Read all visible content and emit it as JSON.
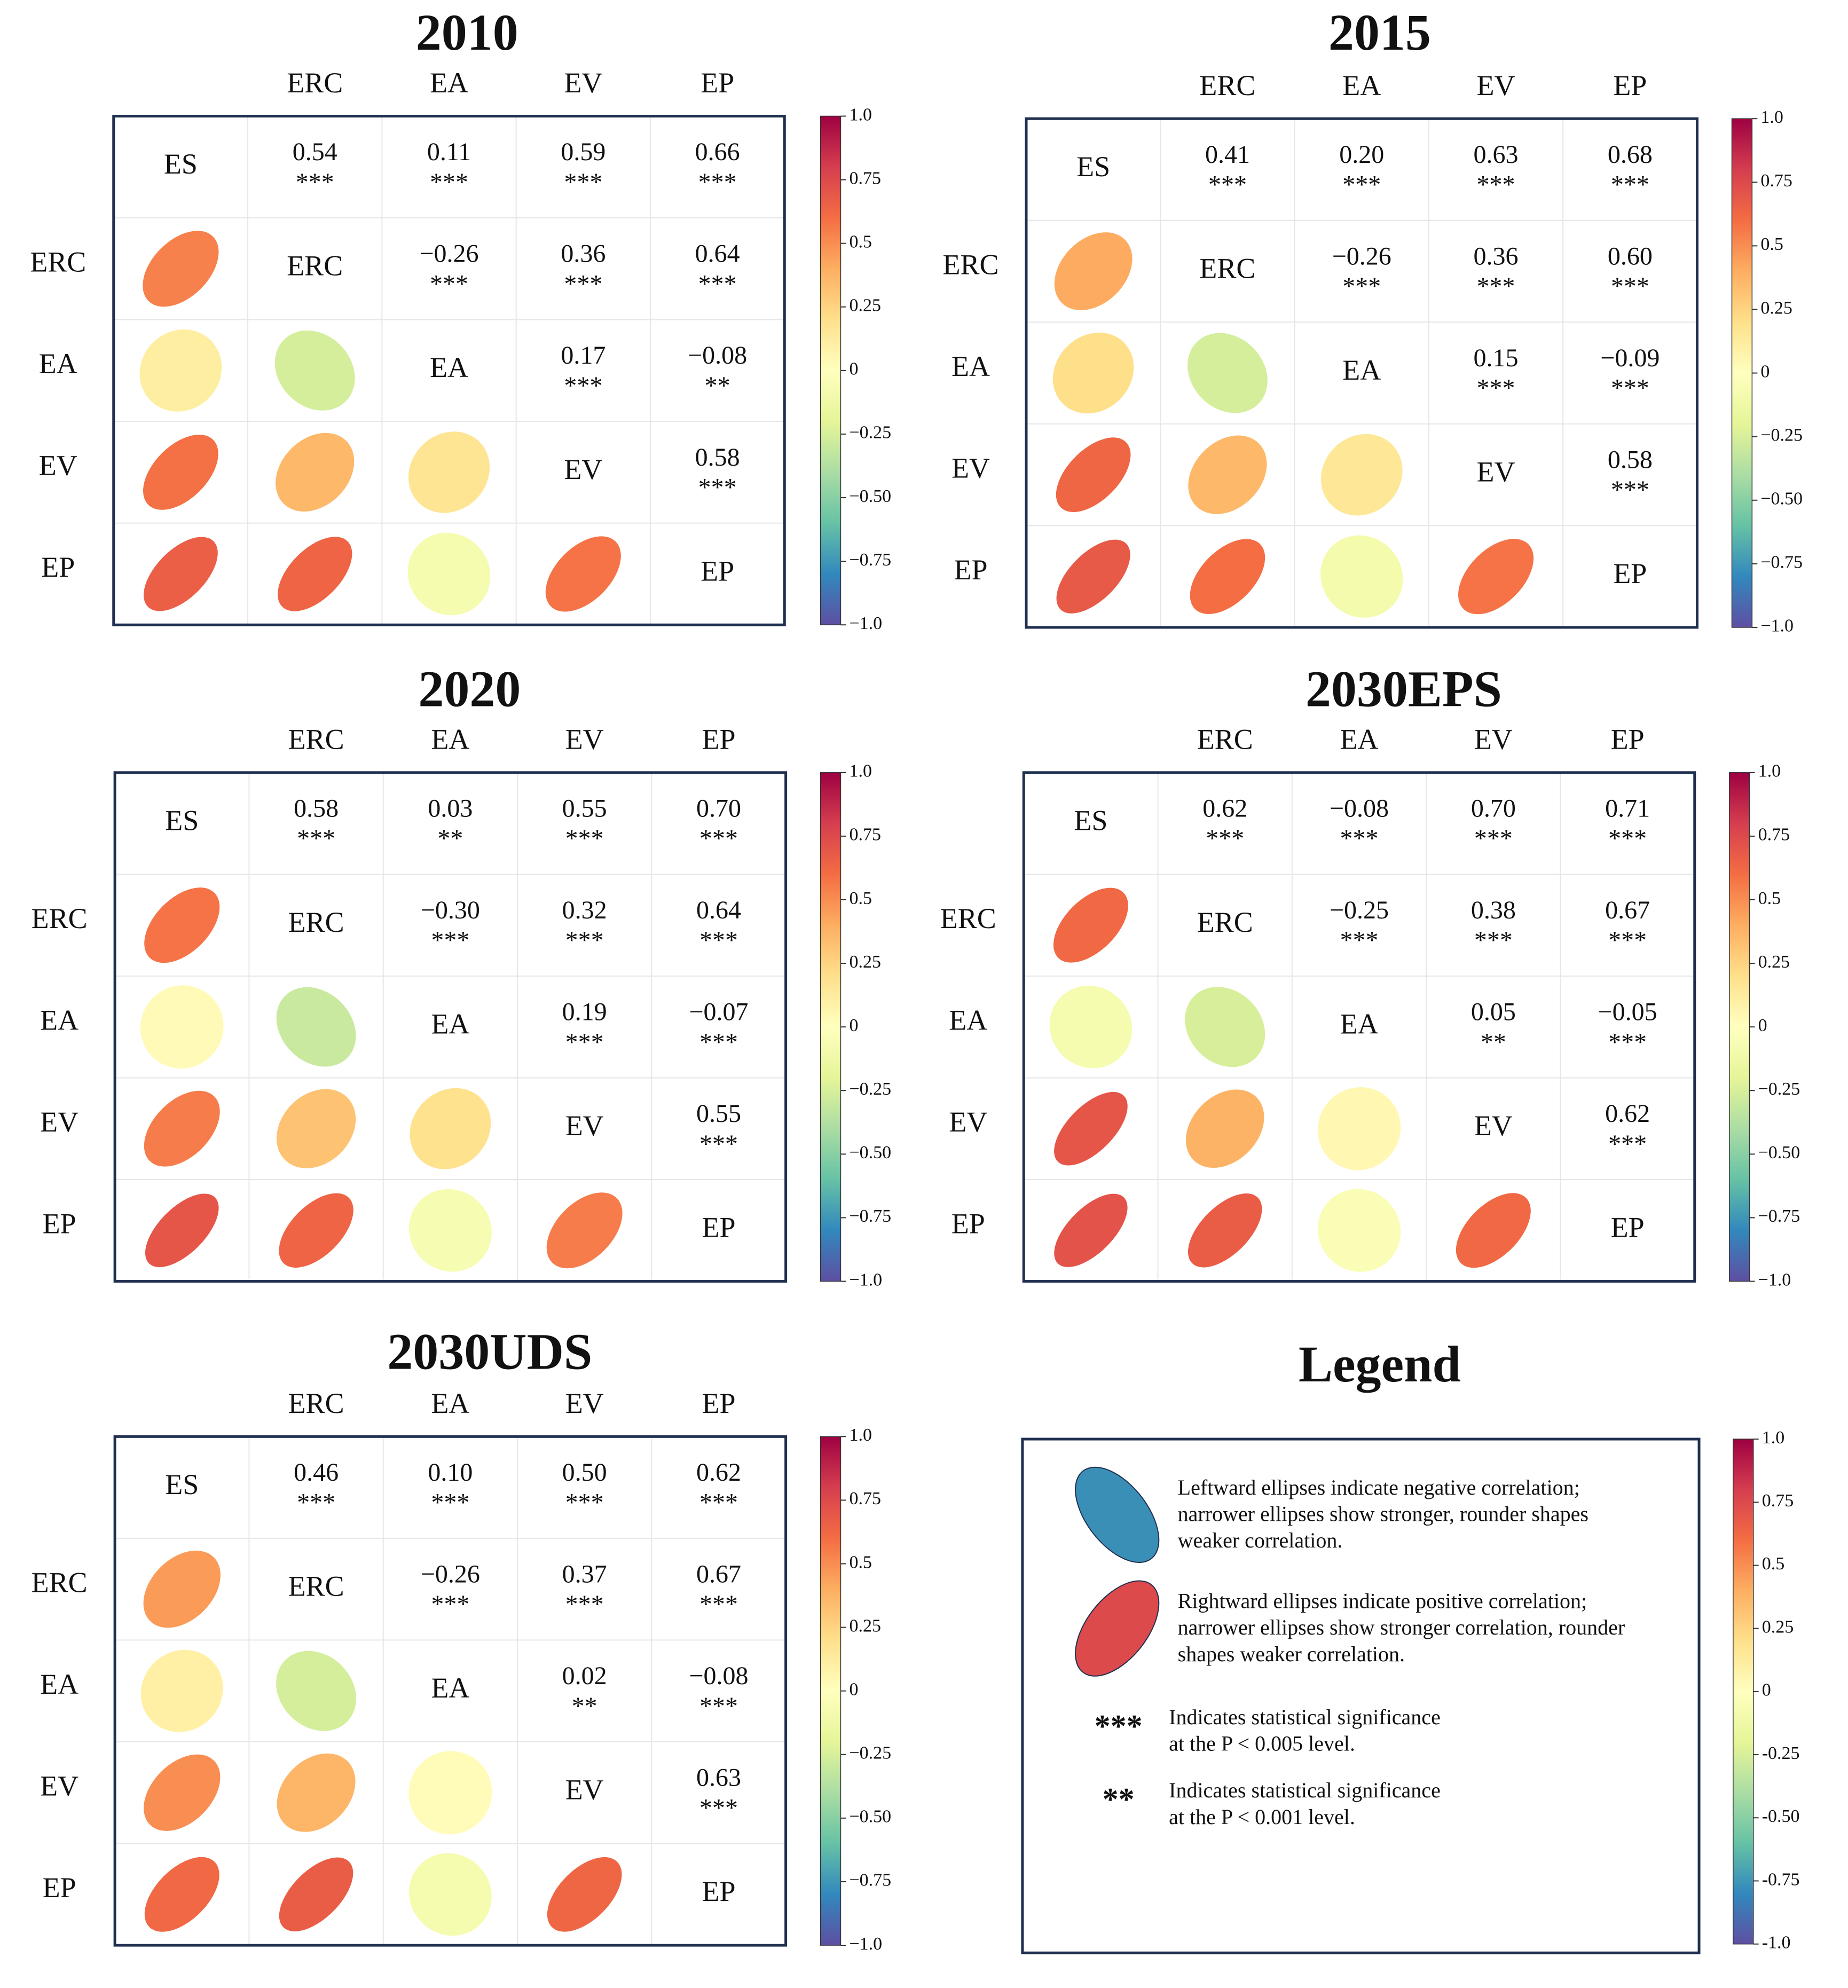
{
  "colorbar": {
    "ticks": [
      "1.0",
      "0.75",
      "0.5",
      "0.25",
      "0",
      "−0.25",
      "−0.50",
      "−0.75",
      "−1.0"
    ],
    "legend_ticks": [
      "1.0",
      "0.75",
      "0.5",
      "0.25",
      "0",
      "-0.25",
      "-0.50",
      "-0.75",
      "-1.0"
    ],
    "stops": [
      "#5e4fa2",
      "#3288bd",
      "#66c2a5",
      "#abdda4",
      "#e6f598",
      "#ffffbf",
      "#fee08b",
      "#fdae61",
      "#f46d43",
      "#d53e4f",
      "#9e0142"
    ]
  },
  "chart_data": [
    {
      "type": "heatmap",
      "title": "2010",
      "variables": [
        "ES",
        "ERC",
        "EA",
        "EV",
        "EP"
      ],
      "col_labels": [
        "ERC",
        "EA",
        "EV",
        "EP"
      ],
      "row_labels": [
        "ERC",
        "EA",
        "EV",
        "EP"
      ],
      "ylim": [
        -1,
        1
      ],
      "pairs": [
        {
          "row": "ES",
          "col": "ERC",
          "label": "0.54",
          "r": 0.54,
          "sig": "***"
        },
        {
          "row": "ES",
          "col": "EA",
          "label": "0.11",
          "r": 0.11,
          "sig": "***"
        },
        {
          "row": "ES",
          "col": "EV",
          "label": "0.59",
          "r": 0.59,
          "sig": "***"
        },
        {
          "row": "ES",
          "col": "EP",
          "label": "0.66",
          "r": 0.66,
          "sig": "***"
        },
        {
          "row": "ERC",
          "col": "EA",
          "label": "−0.26",
          "r": -0.26,
          "sig": "***"
        },
        {
          "row": "ERC",
          "col": "EV",
          "label": "0.36",
          "r": 0.36,
          "sig": "***"
        },
        {
          "row": "ERC",
          "col": "EP",
          "label": "0.64",
          "r": 0.64,
          "sig": "***"
        },
        {
          "row": "EA",
          "col": "EV",
          "label": "0.17",
          "r": 0.17,
          "sig": "***"
        },
        {
          "row": "EA",
          "col": "EP",
          "label": "−0.08",
          "r": -0.08,
          "sig": "**"
        },
        {
          "row": "EV",
          "col": "EP",
          "label": "0.58",
          "r": 0.58,
          "sig": "***"
        }
      ]
    },
    {
      "type": "heatmap",
      "title": "2015",
      "variables": [
        "ES",
        "ERC",
        "EA",
        "EV",
        "EP"
      ],
      "col_labels": [
        "ERC",
        "EA",
        "EV",
        "EP"
      ],
      "row_labels": [
        "ERC",
        "EA",
        "EV",
        "EP"
      ],
      "ylim": [
        -1,
        1
      ],
      "pairs": [
        {
          "row": "ES",
          "col": "ERC",
          "label": "0.41",
          "r": 0.41,
          "sig": "***"
        },
        {
          "row": "ES",
          "col": "EA",
          "label": "0.20",
          "r": 0.2,
          "sig": "***"
        },
        {
          "row": "ES",
          "col": "EV",
          "label": "0.63",
          "r": 0.63,
          "sig": "***"
        },
        {
          "row": "ES",
          "col": "EP",
          "label": "0.68",
          "r": 0.68,
          "sig": "***"
        },
        {
          "row": "ERC",
          "col": "EA",
          "label": "−0.26",
          "r": -0.26,
          "sig": "***"
        },
        {
          "row": "ERC",
          "col": "EV",
          "label": "0.36",
          "r": 0.36,
          "sig": "***"
        },
        {
          "row": "ERC",
          "col": "EP",
          "label": "0.60",
          "r": 0.6,
          "sig": "***"
        },
        {
          "row": "EA",
          "col": "EV",
          "label": "0.15",
          "r": 0.15,
          "sig": "***"
        },
        {
          "row": "EA",
          "col": "EP",
          "label": "−0.09",
          "r": -0.09,
          "sig": "***"
        },
        {
          "row": "EV",
          "col": "EP",
          "label": "0.58",
          "r": 0.58,
          "sig": "***"
        }
      ]
    },
    {
      "type": "heatmap",
      "title": "2020",
      "variables": [
        "ES",
        "ERC",
        "EA",
        "EV",
        "EP"
      ],
      "col_labels": [
        "ERC",
        "EA",
        "EV",
        "EP"
      ],
      "row_labels": [
        "ERC",
        "EA",
        "EV",
        "EP"
      ],
      "ylim": [
        -1,
        1
      ],
      "pairs": [
        {
          "row": "ES",
          "col": "ERC",
          "label": "0.58",
          "r": 0.58,
          "sig": "***"
        },
        {
          "row": "ES",
          "col": "EA",
          "label": "0.03",
          "r": 0.03,
          "sig": "**"
        },
        {
          "row": "ES",
          "col": "EV",
          "label": "0.55",
          "r": 0.55,
          "sig": "***"
        },
        {
          "row": "ES",
          "col": "EP",
          "label": "0.70",
          "r": 0.7,
          "sig": "***"
        },
        {
          "row": "ERC",
          "col": "EA",
          "label": "−0.30",
          "r": -0.3,
          "sig": "***"
        },
        {
          "row": "ERC",
          "col": "EV",
          "label": "0.32",
          "r": 0.32,
          "sig": "***"
        },
        {
          "row": "ERC",
          "col": "EP",
          "label": "0.64",
          "r": 0.64,
          "sig": "***"
        },
        {
          "row": "EA",
          "col": "EV",
          "label": "0.19",
          "r": 0.19,
          "sig": "***"
        },
        {
          "row": "EA",
          "col": "EP",
          "label": "−0.07",
          "r": -0.07,
          "sig": "***"
        },
        {
          "row": "EV",
          "col": "EP",
          "label": "0.55",
          "r": 0.55,
          "sig": "***"
        }
      ]
    },
    {
      "type": "heatmap",
      "title": "2030EPS",
      "variables": [
        "ES",
        "ERC",
        "EA",
        "EV",
        "EP"
      ],
      "col_labels": [
        "ERC",
        "EA",
        "EV",
        "EP"
      ],
      "row_labels": [
        "ERC",
        "EA",
        "EV",
        "EP"
      ],
      "ylim": [
        -1,
        1
      ],
      "pairs": [
        {
          "row": "ES",
          "col": "ERC",
          "label": "0.62",
          "r": 0.62,
          "sig": "***"
        },
        {
          "row": "ES",
          "col": "EA",
          "label": "−0.08",
          "r": -0.08,
          "sig": "***"
        },
        {
          "row": "ES",
          "col": "EV",
          "label": "0.70",
          "r": 0.7,
          "sig": "***"
        },
        {
          "row": "ES",
          "col": "EP",
          "label": "0.71",
          "r": 0.71,
          "sig": "***"
        },
        {
          "row": "ERC",
          "col": "EA",
          "label": "−0.25",
          "r": -0.25,
          "sig": "***"
        },
        {
          "row": "ERC",
          "col": "EV",
          "label": "0.38",
          "r": 0.38,
          "sig": "***"
        },
        {
          "row": "ERC",
          "col": "EP",
          "label": "0.67",
          "r": 0.67,
          "sig": "***"
        },
        {
          "row": "EA",
          "col": "EV",
          "label": "0.05",
          "r": 0.05,
          "sig": "**"
        },
        {
          "row": "EA",
          "col": "EP",
          "label": "−0.05",
          "r": -0.05,
          "sig": "***"
        },
        {
          "row": "EV",
          "col": "EP",
          "label": "0.62",
          "r": 0.62,
          "sig": "***"
        }
      ]
    },
    {
      "type": "heatmap",
      "title": "2030UDS",
      "variables": [
        "ES",
        "ERC",
        "EA",
        "EV",
        "EP"
      ],
      "col_labels": [
        "ERC",
        "EA",
        "EV",
        "EP"
      ],
      "row_labels": [
        "ERC",
        "EA",
        "EV",
        "EP"
      ],
      "ylim": [
        -1,
        1
      ],
      "pairs": [
        {
          "row": "ES",
          "col": "ERC",
          "label": "0.46",
          "r": 0.46,
          "sig": "***"
        },
        {
          "row": "ES",
          "col": "EA",
          "label": "0.10",
          "r": 0.1,
          "sig": "***"
        },
        {
          "row": "ES",
          "col": "EV",
          "label": "0.50",
          "r": 0.5,
          "sig": "***"
        },
        {
          "row": "ES",
          "col": "EP",
          "label": "0.62",
          "r": 0.62,
          "sig": "***"
        },
        {
          "row": "ERC",
          "col": "EA",
          "label": "−0.26",
          "r": -0.26,
          "sig": "***"
        },
        {
          "row": "ERC",
          "col": "EV",
          "label": "0.37",
          "r": 0.37,
          "sig": "***"
        },
        {
          "row": "ERC",
          "col": "EP",
          "label": "0.67",
          "r": 0.67,
          "sig": "***"
        },
        {
          "row": "EA",
          "col": "EV",
          "label": "0.02",
          "r": 0.02,
          "sig": "**"
        },
        {
          "row": "EA",
          "col": "EP",
          "label": "−0.08",
          "r": -0.08,
          "sig": "***"
        },
        {
          "row": "EV",
          "col": "EP",
          "label": "0.63",
          "r": 0.63,
          "sig": "***"
        }
      ]
    }
  ],
  "legend": {
    "title": "Legend",
    "negative_example_r": -0.5,
    "positive_example_r": 0.75,
    "negative_text": [
      "Leftward ellipses indicate negative correlation;",
      "narrower ellipses show stronger, rounder shapes",
      "weaker correlation."
    ],
    "positive_text": [
      "Rightward ellipses indicate positive correlation;",
      "narrower ellipses show stronger correlation, rounder",
      "shapes weaker correlation."
    ],
    "sig3_symbol": "***",
    "sig3_text": [
      "Indicates statistical significance",
      "at the P < 0.005 level."
    ],
    "sig2_symbol": "**",
    "sig2_text": [
      "Indicates statistical significance",
      "at the P < 0.001 level."
    ]
  }
}
